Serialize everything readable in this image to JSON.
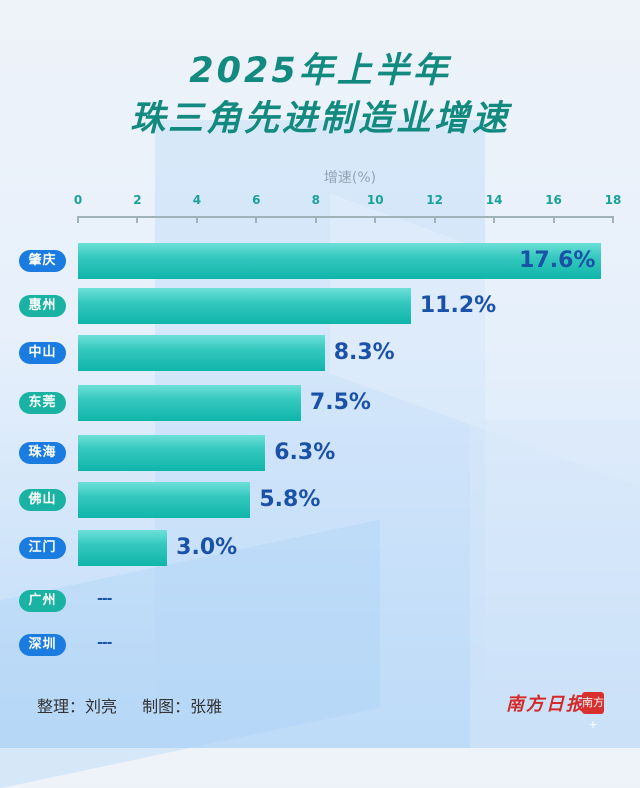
{
  "title": {
    "line1": "2025年上半年",
    "line2": "珠三角先进制造业增速"
  },
  "axis": {
    "title": "增速(%)",
    "ticks": [
      "0",
      "2",
      "4",
      "6",
      "8",
      "10",
      "12",
      "14",
      "16",
      "18"
    ]
  },
  "rows": [
    {
      "city": "肇庆",
      "value": 17.6,
      "label": "17.6%"
    },
    {
      "city": "惠州",
      "value": 11.2,
      "label": "11.2%"
    },
    {
      "city": "中山",
      "value": 8.3,
      "label": "8.3%"
    },
    {
      "city": "东莞",
      "value": 7.5,
      "label": "7.5%"
    },
    {
      "city": "珠海",
      "value": 6.3,
      "label": "6.3%"
    },
    {
      "city": "佛山",
      "value": 5.8,
      "label": "5.8%"
    },
    {
      "city": "江门",
      "value": 3.0,
      "label": "3.0%"
    },
    {
      "city": "广州",
      "value": null,
      "label": "---"
    },
    {
      "city": "深圳",
      "value": null,
      "label": "---"
    }
  ],
  "footer": {
    "compiler": "整理：刘亮",
    "designer": "制图：张雅",
    "logo": "南方日报",
    "logo_badge": "南方+"
  },
  "colors": {
    "title": "#138a80",
    "bar": "#1ab3a3",
    "value": "#1a52a8",
    "pill_blue": "#1a7be0",
    "pill_teal": "#1ab3a3"
  },
  "chart_data": {
    "type": "bar",
    "orientation": "horizontal",
    "title": "2025年上半年 珠三角先进制造业增速",
    "xlabel": "增速(%)",
    "ylabel": "",
    "categories": [
      "肇庆",
      "惠州",
      "中山",
      "东莞",
      "珠海",
      "佛山",
      "江门",
      "广州",
      "深圳"
    ],
    "values": [
      17.6,
      11.2,
      8.3,
      7.5,
      6.3,
      5.8,
      3.0,
      null,
      null
    ],
    "data_labels": [
      "17.6%",
      "11.2%",
      "8.3%",
      "7.5%",
      "6.3%",
      "5.8%",
      "3.0%",
      "---",
      "---"
    ],
    "xlim": [
      0,
      18
    ],
    "xticks": [
      0,
      2,
      4,
      6,
      8,
      10,
      12,
      14,
      16,
      18
    ],
    "axis_position": "top",
    "grid": false,
    "legend": null
  }
}
